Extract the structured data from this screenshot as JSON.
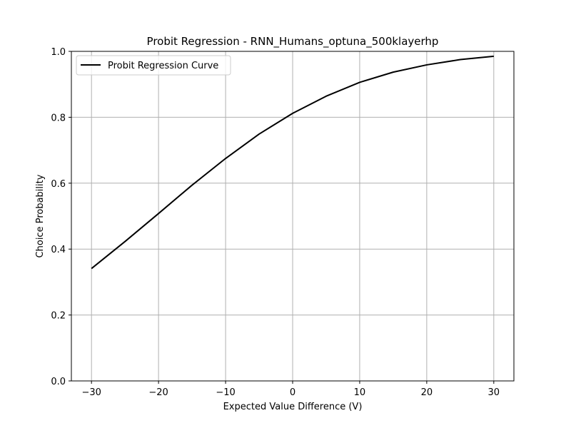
{
  "chart_data": {
    "type": "line",
    "title": "Probit Regression - RNN_Humans_optuna_500klayerhp",
    "xlabel": "Expected Value Difference (V)",
    "ylabel": "Choice Probability",
    "xlim": [
      -33,
      33
    ],
    "ylim": [
      0.0,
      1.0
    ],
    "xticks": [
      -30,
      -20,
      -10,
      0,
      10,
      20,
      30
    ],
    "xtick_labels": [
      "−30",
      "−20",
      "−10",
      "0",
      "10",
      "20",
      "30"
    ],
    "yticks": [
      0.0,
      0.2,
      0.4,
      0.6,
      0.8,
      1.0
    ],
    "ytick_labels": [
      "0.0",
      "0.2",
      "0.4",
      "0.6",
      "0.8",
      "1.0"
    ],
    "grid": true,
    "legend_position": "top-left",
    "series": [
      {
        "name": "Probit Regression Curve",
        "color": "#000000",
        "x": [
          -30,
          -25,
          -20,
          -15,
          -10,
          -5,
          0,
          5,
          10,
          15,
          20,
          25,
          30
        ],
        "y": [
          0.341,
          0.423,
          0.508,
          0.594,
          0.675,
          0.749,
          0.812,
          0.864,
          0.906,
          0.937,
          0.959,
          0.975,
          0.985
        ]
      }
    ]
  }
}
